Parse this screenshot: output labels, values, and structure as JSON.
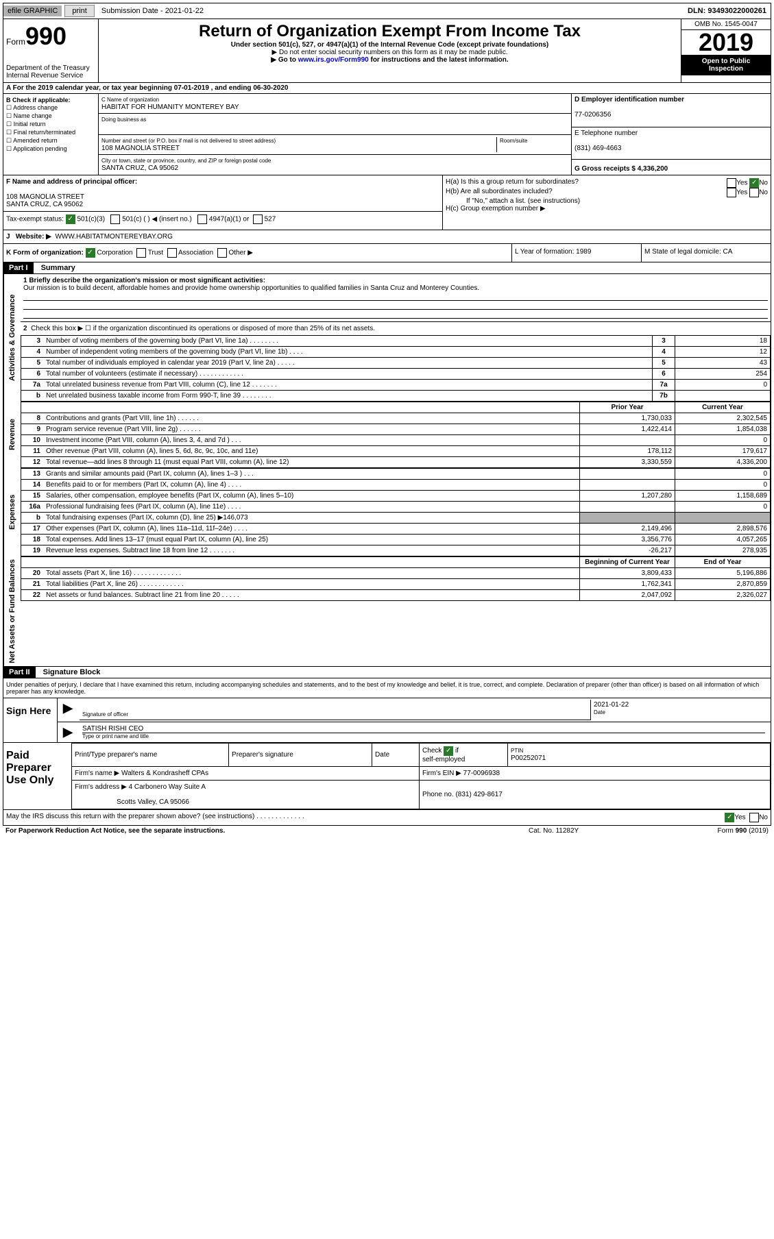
{
  "topbar": {
    "efile": "efile GRAPHIC",
    "print": "print",
    "subdate_label": "Submission Date - 2021-01-22",
    "dln": "DLN: 93493022000261"
  },
  "header": {
    "form_label": "Form",
    "form_num": "990",
    "dept": "Department of the Treasury\nInternal Revenue Service",
    "title": "Return of Organization Exempt From Income Tax",
    "sub1": "Under section 501(c), 527, or 4947(a)(1) of the Internal Revenue Code (except private foundations)",
    "sub2": "▶ Do not enter social security numbers on this form as it may be made public.",
    "sub3_pre": "▶ Go to ",
    "sub3_link": "www.irs.gov/Form990",
    "sub3_post": " for instructions and the latest information.",
    "omb": "OMB No. 1545-0047",
    "year": "2019",
    "open": "Open to Public Inspection"
  },
  "row_a": "A For the 2019 calendar year, or tax year beginning 07-01-2019    , and ending 06-30-2020",
  "col_b": {
    "title": "B Check if applicable:",
    "items": [
      "Address change",
      "Name change",
      "Initial return",
      "Final return/terminated",
      "Amended return",
      "Application pending"
    ]
  },
  "col_c": {
    "name_label": "C Name of organization",
    "name": "HABITAT FOR HUMANITY MONTEREY BAY",
    "dba": "Doing business as",
    "addr_label": "Number and street (or P.O. box if mail is not delivered to street address)",
    "room_label": "Room/suite",
    "addr": "108 MAGNOLIA STREET",
    "city_label": "City or town, state or province, country, and ZIP or foreign postal code",
    "city": "SANTA CRUZ, CA  95062"
  },
  "col_d": {
    "ein_label": "D Employer identification number",
    "ein": "77-0206356",
    "tel_label": "E Telephone number",
    "tel": "(831) 469-4663",
    "gross_label": "G Gross receipts $ 4,336,200"
  },
  "row_f": {
    "label": "F  Name and address of principal officer:",
    "addr1": "108 MAGNOLIA STREET",
    "addr2": "SANTA CRUZ, CA  95062",
    "ha": "H(a)  Is this a group return for subordinates?",
    "hb": "H(b)  Are all subordinates included?",
    "hb_note": "If \"No,\" attach a list. (see instructions)",
    "hc": "H(c)  Group exemption number ▶",
    "yes": "Yes",
    "no": "No"
  },
  "tax_status": {
    "label": "Tax-exempt status:",
    "opt1": "501(c)(3)",
    "opt2": "501(c) (  ) ◀ (insert no.)",
    "opt3": "4947(a)(1) or",
    "opt4": "527"
  },
  "row_j": {
    "label": "J",
    "website": "Website: ▶",
    "url": "WWW.HABITATMONTEREYBAY.ORG"
  },
  "row_k": {
    "k_label": "K Form of organization:",
    "corp": "Corporation",
    "trust": "Trust",
    "assoc": "Association",
    "other": "Other ▶",
    "l": "L Year of formation: 1989",
    "m": "M State of legal domicile: CA"
  },
  "part1": {
    "header": "Part I",
    "title": "Summary",
    "line1_label": "1  Briefly describe the organization's mission or most significant activities:",
    "line1_text": "Our mission is to build decent, affordable homes and provide home ownership opportunities to qualified families in Santa Cruz and Monterey Counties.",
    "line2": "Check this box ▶ ☐  if the organization discontinued its operations or disposed of more than 25% of its net assets.",
    "vtab_ag": "Activities & Governance",
    "vtab_rev": "Revenue",
    "vtab_exp": "Expenses",
    "vtab_na": "Net Assets or Fund Balances",
    "prior_year": "Prior Year",
    "current_year": "Current Year",
    "boy": "Beginning of Current Year",
    "eoy": "End of Year",
    "lines_ag": [
      {
        "n": "3",
        "d": "Number of voting members of the governing body (Part VI, line 1a)   .   .   .   .   .   .   .   .",
        "b": "3",
        "v": "18"
      },
      {
        "n": "4",
        "d": "Number of independent voting members of the governing body (Part VI, line 1b)   .   .   .   .",
        "b": "4",
        "v": "12"
      },
      {
        "n": "5",
        "d": "Total number of individuals employed in calendar year 2019 (Part V, line 2a)   .   .   .   .   .",
        "b": "5",
        "v": "43"
      },
      {
        "n": "6",
        "d": "Total number of volunteers (estimate if necessary)   .   .   .   .   .   .   .   .   .   .   .   .",
        "b": "6",
        "v": "254"
      },
      {
        "n": "7a",
        "d": "Total unrelated business revenue from Part VIII, column (C), line 12   .   .   .   .   .   .   .",
        "b": "7a",
        "v": "0"
      },
      {
        "n": "b",
        "d": "Net unrelated business taxable income from Form 990-T, line 39   .   .   .   .   .   .   .   .",
        "b": "7b",
        "v": ""
      }
    ],
    "lines_rev": [
      {
        "n": "8",
        "d": "Contributions and grants (Part VIII, line 1h)   .   .   .   .   .   .",
        "py": "1,730,033",
        "cy": "2,302,545"
      },
      {
        "n": "9",
        "d": "Program service revenue (Part VIII, line 2g)   .   .   .   .   .   .",
        "py": "1,422,414",
        "cy": "1,854,038"
      },
      {
        "n": "10",
        "d": "Investment income (Part VIII, column (A), lines 3, 4, and 7d )   .   .   .",
        "py": "",
        "cy": "0"
      },
      {
        "n": "11",
        "d": "Other revenue (Part VIII, column (A), lines 5, 6d, 8c, 9c, 10c, and 11e)",
        "py": "178,112",
        "cy": "179,617"
      },
      {
        "n": "12",
        "d": "Total revenue—add lines 8 through 11 (must equal Part VIII, column (A), line 12)",
        "py": "3,330,559",
        "cy": "4,336,200"
      }
    ],
    "lines_exp": [
      {
        "n": "13",
        "d": "Grants and similar amounts paid (Part IX, column (A), lines 1–3 )   .   .   .",
        "py": "",
        "cy": "0"
      },
      {
        "n": "14",
        "d": "Benefits paid to or for members (Part IX, column (A), line 4)   .   .   .   .",
        "py": "",
        "cy": "0"
      },
      {
        "n": "15",
        "d": "Salaries, other compensation, employee benefits (Part IX, column (A), lines 5–10)",
        "py": "1,207,280",
        "cy": "1,158,689"
      },
      {
        "n": "16a",
        "d": "Professional fundraising fees (Part IX, column (A), line 11e)   .   .   .   .",
        "py": "",
        "cy": "0"
      },
      {
        "n": "b",
        "d": "Total fundraising expenses (Part IX, column (D), line 25) ▶146,073",
        "py": "grey",
        "cy": "grey"
      },
      {
        "n": "17",
        "d": "Other expenses (Part IX, column (A), lines 11a–11d, 11f–24e)   .   .   .   .",
        "py": "2,149,496",
        "cy": "2,898,576"
      },
      {
        "n": "18",
        "d": "Total expenses. Add lines 13–17 (must equal Part IX, column (A), line 25)",
        "py": "3,356,776",
        "cy": "4,057,265"
      },
      {
        "n": "19",
        "d": "Revenue less expenses. Subtract line 18 from line 12 .   .   .   .   .   .   .",
        "py": "-26,217",
        "cy": "278,935"
      }
    ],
    "lines_na": [
      {
        "n": "20",
        "d": "Total assets (Part X, line 16)   .   .   .   .   .   .   .   .   .   .   .   .   .",
        "py": "3,809,433",
        "cy": "5,196,886"
      },
      {
        "n": "21",
        "d": "Total liabilities (Part X, line 26)   .   .   .   .   .   .   .   .   .   .   .   .",
        "py": "1,762,341",
        "cy": "2,870,859"
      },
      {
        "n": "22",
        "d": "Net assets or fund balances. Subtract line 21 from line 20   .   .   .   .   .",
        "py": "2,047,092",
        "cy": "2,326,027"
      }
    ]
  },
  "part2": {
    "header": "Part II",
    "title": "Signature Block",
    "decl": "Under penalties of perjury, I declare that I have examined this return, including accompanying schedules and statements, and to the best of my knowledge and belief, it is true, correct, and complete. Declaration of preparer (other than officer) is based on all information of which preparer has any knowledge.",
    "sign_here": "Sign Here",
    "sig_officer": "Signature of officer",
    "date": "Date",
    "date_val": "2021-01-22",
    "name": "SATISH RISHI  CEO",
    "name_label": "Type or print name and title",
    "paid": "Paid Preparer Use Only",
    "prep_name": "Print/Type preparer's name",
    "prep_sig": "Preparer's signature",
    "prep_date": "Date",
    "check_self": "Check ☑ if self-employed",
    "ptin_label": "PTIN",
    "ptin": "P00252071",
    "firm_name_label": "Firm's name    ▶",
    "firm_name": "Walters & Kondrasheff CPAs",
    "firm_ein_label": "Firm's EIN ▶",
    "firm_ein": "77-0096938",
    "firm_addr_label": "Firm's address ▶",
    "firm_addr1": "4 Carbonero Way Suite A",
    "firm_addr2": "Scotts Valley, CA  95066",
    "phone_label": "Phone no.",
    "phone": "(831) 429-8617",
    "discuss": "May the IRS discuss this return with the preparer shown above? (see instructions)   .   .   .   .   .   .   .   .   .   .   .   .   .",
    "yes": "Yes",
    "no": "No"
  },
  "footer": {
    "left": "For Paperwork Reduction Act Notice, see the separate instructions.",
    "center": "Cat. No. 11282Y",
    "right": "Form 990 (2019)"
  }
}
